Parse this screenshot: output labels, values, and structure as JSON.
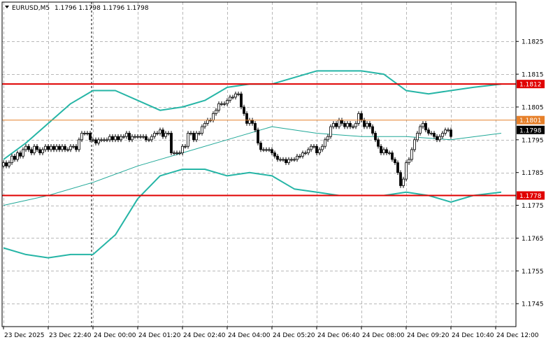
{
  "header": {
    "symbol": "EURUSD,M5",
    "ohlc": "1.1796 1.1798 1.1796 1.1798"
  },
  "colors": {
    "background": "#ffffff",
    "grid": "#b8b8b8",
    "candle": "#000000",
    "bollinger": "#26b5a6",
    "sma": "#20a898",
    "resistance_line": "#e00000",
    "mid_line": "#e6802a",
    "price_badge": "#000000"
  },
  "chart_data": {
    "type": "candlestick",
    "symbol": "EURUSD",
    "timeframe": "M5",
    "ylim": [
      1.1738,
      1.1837
    ],
    "y_ticks": [
      "1.1825",
      "1.1815",
      "1.1805",
      "1.1795",
      "1.1785",
      "1.1775",
      "1.1765",
      "1.1755",
      "1.1745"
    ],
    "x_ticks": [
      "23 Dec 2025",
      "23 Dec 22:40",
      "24 Dec 00:00",
      "24 Dec 01:20",
      "24 Dec 02:40",
      "24 Dec 04:00",
      "24 Dec 05:20",
      "24 Dec 06:40",
      "24 Dec 08:00",
      "24 Dec 09:20",
      "24 Dec 10:40",
      "24 Dec 12:00"
    ],
    "x_tick_index": [
      0,
      16,
      32,
      48,
      64,
      80,
      96,
      112,
      128,
      144,
      160,
      176
    ],
    "grid": true,
    "levels": [
      {
        "label": "1.1812",
        "value": 1.1812,
        "color": "#e00000"
      },
      {
        "label": "1.1801",
        "value": 1.1801,
        "color": "#e6802a"
      },
      {
        "label": "1.1778",
        "value": 1.1778,
        "color": "#e00000"
      }
    ],
    "current_price": {
      "label": "1.1798",
      "value": 1.1798
    },
    "close": [
      1.1788,
      1.1787,
      1.1788,
      1.179,
      1.1789,
      1.1791,
      1.179,
      1.1792,
      1.1793,
      1.1792,
      1.1791,
      1.1793,
      1.1792,
      1.1791,
      1.1792,
      1.1793,
      1.1792,
      1.1793,
      1.1792,
      1.1793,
      1.1792,
      1.1793,
      1.1792,
      1.1792,
      1.1793,
      1.1793,
      1.1792,
      1.1795,
      1.1797,
      1.1797,
      1.1797,
      1.1795,
      1.1795,
      1.1794,
      1.1795,
      1.1795,
      1.1795,
      1.1795,
      1.1796,
      1.1795,
      1.1796,
      1.1795,
      1.1796,
      1.1796,
      1.1797,
      1.1795,
      1.1796,
      1.1796,
      1.1796,
      1.1796,
      1.1796,
      1.1795,
      1.1795,
      1.1796,
      1.1797,
      1.1797,
      1.1798,
      1.1796,
      1.1797,
      1.1797,
      1.1791,
      1.1791,
      1.1791,
      1.1791,
      1.1793,
      1.1793,
      1.1797,
      1.1797,
      1.1795,
      1.1797,
      1.1797,
      1.1799,
      1.18,
      1.1801,
      1.1801,
      1.1803,
      1.1804,
      1.1806,
      1.1806,
      1.1806,
      1.1807,
      1.1808,
      1.1808,
      1.1809,
      1.1809,
      1.1805,
      1.1803,
      1.18,
      1.1801,
      1.18,
      1.1798,
      1.1794,
      1.1792,
      1.1792,
      1.1792,
      1.1792,
      1.1791,
      1.179,
      1.1789,
      1.1789,
      1.1789,
      1.1788,
      1.1789,
      1.1789,
      1.1789,
      1.179,
      1.179,
      1.1791,
      1.1791,
      1.1792,
      1.1793,
      1.1793,
      1.1791,
      1.1792,
      1.1793,
      1.1795,
      1.1796,
      1.1799,
      1.18,
      1.1799,
      1.1801,
      1.18,
      1.1799,
      1.18,
      1.1799,
      1.1799,
      1.18,
      1.1803,
      1.1801,
      1.1799,
      1.18,
      1.1799,
      1.1797,
      1.1795,
      1.1793,
      1.1791,
      1.1792,
      1.1791,
      1.1791,
      1.1789,
      1.1788,
      1.1785,
      1.1781,
      1.1783,
      1.1788,
      1.1789,
      1.1792,
      1.1795,
      1.1797,
      1.1799,
      1.18,
      1.1798,
      1.1797,
      1.1797,
      1.1796,
      1.1795,
      1.1796,
      1.1797,
      1.1798,
      1.1798,
      1.1796
    ]
  },
  "indicators": {
    "bollinger_upper": [
      [
        0,
        1.1789
      ],
      [
        8,
        1.1794
      ],
      [
        16,
        1.18
      ],
      [
        24,
        1.1806
      ],
      [
        32,
        1.181
      ],
      [
        40,
        1.181
      ],
      [
        48,
        1.1807
      ],
      [
        56,
        1.1804
      ],
      [
        64,
        1.1805
      ],
      [
        72,
        1.1807
      ],
      [
        80,
        1.1811
      ],
      [
        88,
        1.1812
      ],
      [
        96,
        1.1812
      ],
      [
        104,
        1.1814
      ],
      [
        112,
        1.1816
      ],
      [
        120,
        1.1816
      ],
      [
        128,
        1.1816
      ],
      [
        136,
        1.1815
      ],
      [
        144,
        1.181
      ],
      [
        152,
        1.1809
      ],
      [
        160,
        1.181
      ],
      [
        168,
        1.1811
      ],
      [
        178,
        1.1812
      ]
    ],
    "sma": [
      [
        0,
        1.1775
      ],
      [
        16,
        1.1778
      ],
      [
        32,
        1.1782
      ],
      [
        48,
        1.1787
      ],
      [
        64,
        1.1791
      ],
      [
        80,
        1.1795
      ],
      [
        96,
        1.1799
      ],
      [
        112,
        1.1797
      ],
      [
        128,
        1.1796
      ],
      [
        144,
        1.1796
      ],
      [
        160,
        1.1795
      ],
      [
        178,
        1.1797
      ]
    ],
    "bollinger_lower": [
      [
        0,
        1.1762
      ],
      [
        8,
        1.176
      ],
      [
        16,
        1.1759
      ],
      [
        24,
        1.176
      ],
      [
        32,
        1.176
      ],
      [
        40,
        1.1766
      ],
      [
        48,
        1.1777
      ],
      [
        56,
        1.1784
      ],
      [
        64,
        1.1786
      ],
      [
        72,
        1.1786
      ],
      [
        80,
        1.1784
      ],
      [
        88,
        1.1785
      ],
      [
        96,
        1.1784
      ],
      [
        104,
        1.178
      ],
      [
        112,
        1.1779
      ],
      [
        120,
        1.1778
      ],
      [
        128,
        1.1778
      ],
      [
        136,
        1.1778
      ],
      [
        144,
        1.1779
      ],
      [
        152,
        1.1778
      ],
      [
        160,
        1.1776
      ],
      [
        168,
        1.1778
      ],
      [
        178,
        1.1779
      ]
    ]
  }
}
